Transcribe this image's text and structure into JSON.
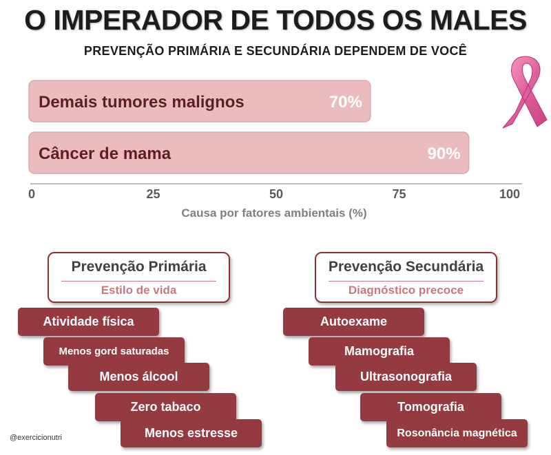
{
  "header": {
    "title": "O IMPERADOR DE TODOS OS MALES",
    "subtitle": "PREVENÇÃO PRIMÁRIA E SECUNDÁRIA DEPENDEM  DE VOCÊ"
  },
  "icons": {
    "ribbon": "pink-ribbon-icon"
  },
  "colors": {
    "bar_fill": "#ebbcbd",
    "bar_text": "#5c1f26",
    "step_fill": "#953a40",
    "box_border": "#8c2f35",
    "box_subtitle": "#c9787e"
  },
  "chart_data": {
    "type": "bar",
    "orientation": "horizontal",
    "categories": [
      "Demais tumores malignos",
      "Câncer de mama"
    ],
    "values": [
      70,
      90
    ],
    "value_labels": [
      "70%",
      "90%"
    ],
    "xlabel": "Causa por fatores ambientais (%)",
    "xlim": [
      0,
      100
    ],
    "xticks": [
      0,
      25,
      50,
      75,
      100
    ],
    "grid": false,
    "legend": "none"
  },
  "primary": {
    "title": "Prevenção Primária",
    "subtitle": "Estilo de vida",
    "items": [
      "Atividade física",
      "Menos gord saturadas",
      "Menos álcool",
      "Zero tabaco",
      "Menos estresse"
    ]
  },
  "secondary": {
    "title": "Prevenção Secundária",
    "subtitle": "Diagnóstico precoce",
    "items": [
      "Autoexame",
      "Mamografia",
      "Ultrasonografia",
      "Tomografia",
      "Rosonância magnética"
    ]
  },
  "footer": {
    "credit": "@exercicionutri"
  }
}
